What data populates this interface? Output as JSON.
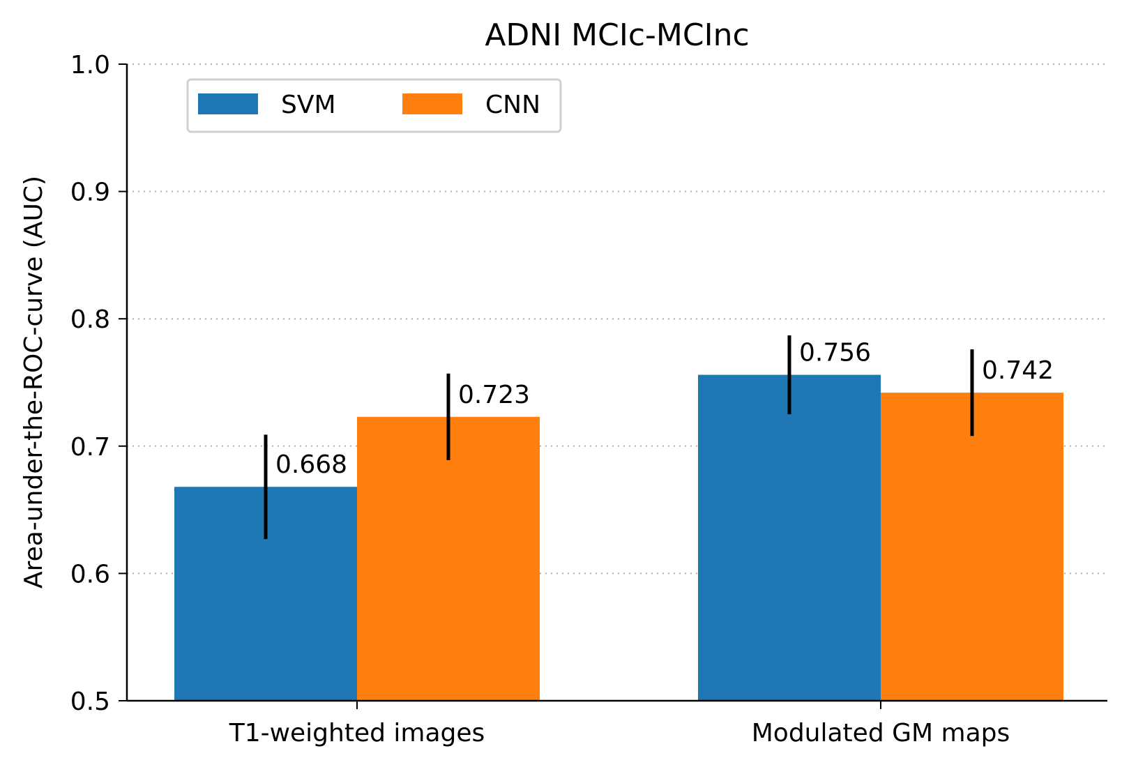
{
  "chart_data": {
    "type": "bar",
    "title": "ADNI MCIc-MCInc",
    "xlabel": "",
    "ylabel": "Area-under-the-ROC-curve (AUC)",
    "ylim": [
      0.5,
      1.0
    ],
    "yticks": [
      "0.5",
      "0.6",
      "0.7",
      "0.8",
      "0.9",
      "1.0"
    ],
    "grid": "y, dotted",
    "legend_placement": "top-left",
    "categories": [
      "T1-weighted images",
      "Modulated GM maps"
    ],
    "series": [
      {
        "name": "SVM",
        "color": "#1f77b4",
        "values": [
          0.668,
          0.756
        ],
        "error": [
          0.041,
          0.031
        ],
        "labels": [
          "0.668",
          "0.756"
        ]
      },
      {
        "name": "CNN",
        "color": "#ff7f0e",
        "values": [
          0.723,
          0.742
        ],
        "error": [
          0.034,
          0.034
        ],
        "labels": [
          "0.723",
          "0.742"
        ]
      }
    ]
  }
}
